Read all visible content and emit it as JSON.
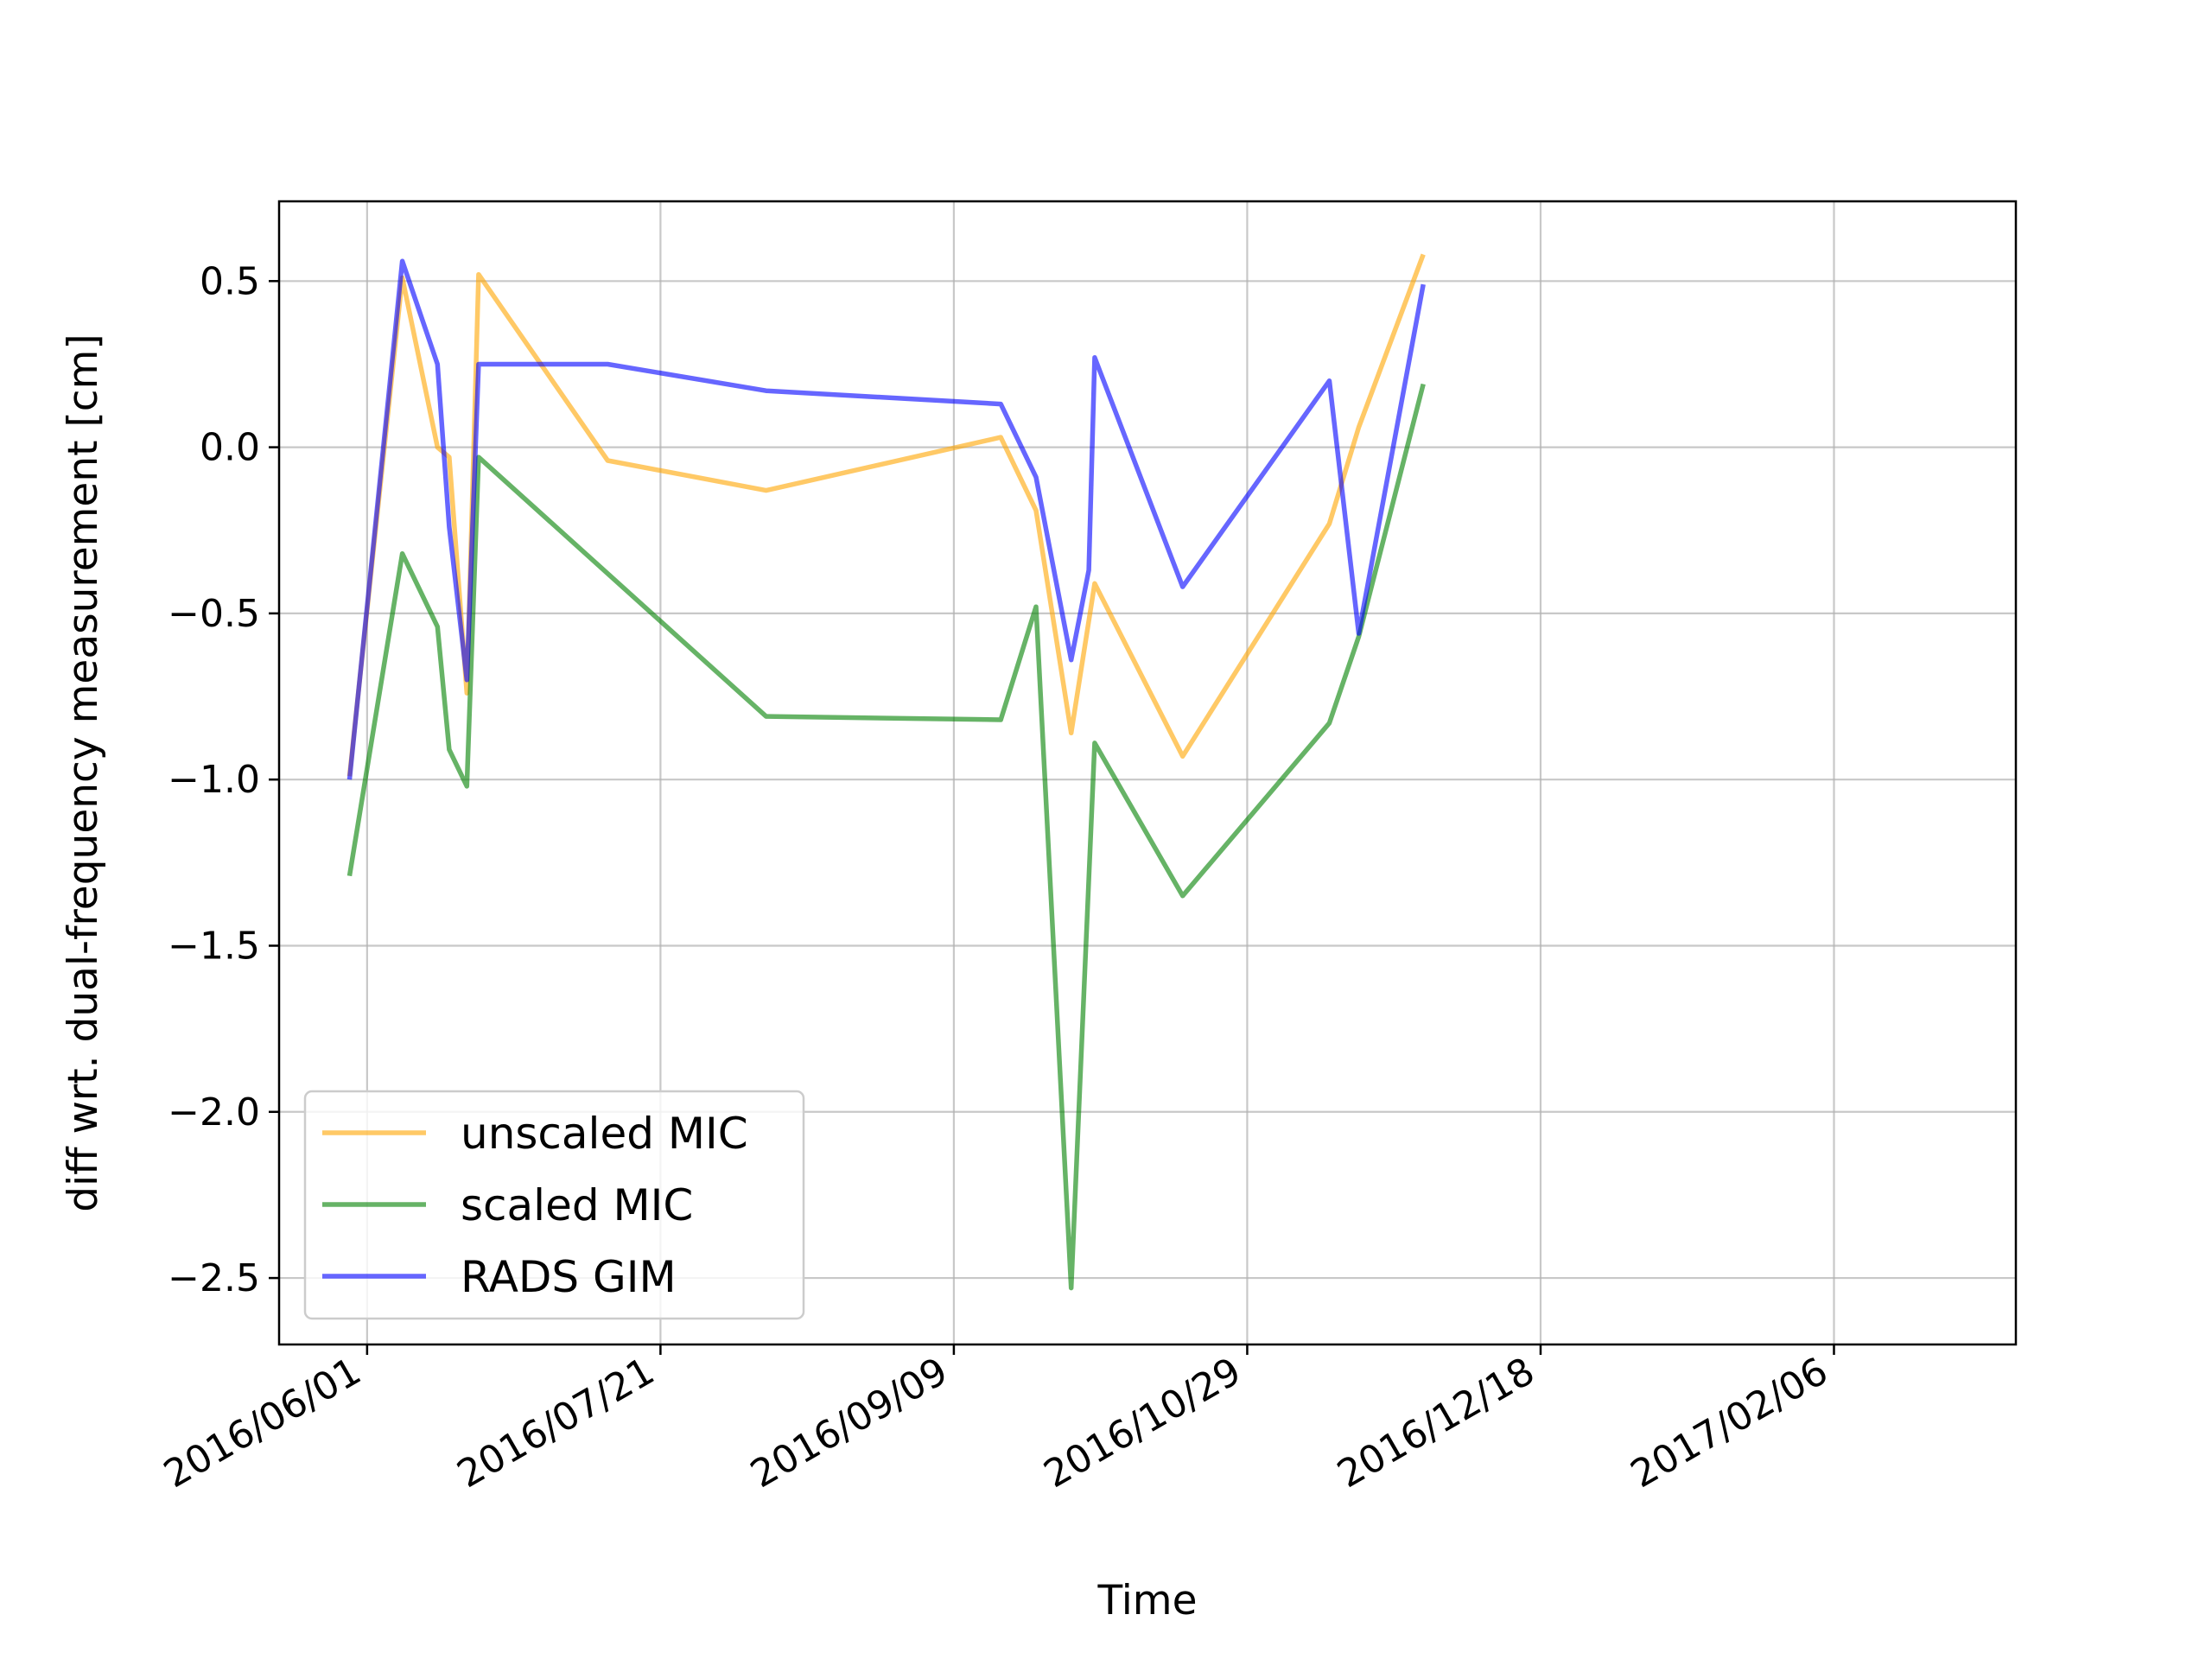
{
  "chart_data": {
    "type": "line",
    "title": "",
    "xlabel": "Time",
    "ylabel": "diff wrt. dual-frequency measurement [cm]",
    "x_axis": "date",
    "xlim": [
      "2016-05-17",
      "2017-03-09"
    ],
    "ylim": [
      -2.7,
      0.74
    ],
    "xticks": [
      "2016-06-01",
      "2016-07-21",
      "2016-09-09",
      "2016-10-29",
      "2016-12-18",
      "2017-02-06"
    ],
    "xtick_labels": [
      "2016/06/01",
      "2016/07/21",
      "2016/09/09",
      "2016/10/29",
      "2016/12/18",
      "2017/02/06"
    ],
    "yticks": [
      0.5,
      0.0,
      -0.5,
      -1.0,
      -1.5,
      -2.0,
      -2.5
    ],
    "ytick_labels": [
      "0.5",
      "0.0",
      "−0.5",
      "−1.0",
      "−1.5",
      "−2.0",
      "−2.5"
    ],
    "grid": true,
    "legend_position": "bottom-left",
    "series": [
      {
        "name": "unscaled MIC",
        "color": "#ffa500",
        "x": [
          "2016-05-29",
          "2016-06-07",
          "2016-06-13",
          "2016-06-15",
          "2016-06-18",
          "2016-06-20",
          "2016-07-12",
          "2016-08-08",
          "2016-09-17",
          "2016-09-23",
          "2016-09-29",
          "2016-10-03",
          "2016-10-18",
          "2016-11-12",
          "2016-11-17",
          "2016-11-28"
        ],
        "y": [
          -0.99,
          0.51,
          0.0,
          -0.03,
          -0.74,
          0.52,
          -0.04,
          -0.13,
          0.03,
          -0.19,
          -0.86,
          -0.41,
          -0.93,
          -0.23,
          0.06,
          0.58
        ]
      },
      {
        "name": "scaled MIC",
        "color": "#008000",
        "x": [
          "2016-05-29",
          "2016-06-07",
          "2016-06-13",
          "2016-06-15",
          "2016-06-18",
          "2016-06-20",
          "2016-08-08",
          "2016-09-17",
          "2016-09-23",
          "2016-09-29",
          "2016-10-03",
          "2016-10-18",
          "2016-11-12",
          "2016-11-17",
          "2016-11-28"
        ],
        "y": [
          -1.29,
          -0.32,
          -0.54,
          -0.91,
          -1.02,
          -0.03,
          -0.81,
          -0.82,
          -0.48,
          -2.53,
          -0.89,
          -1.35,
          -0.83,
          -0.57,
          0.19
        ]
      },
      {
        "name": "RADS GIM",
        "color": "#0000ff",
        "x": [
          "2016-05-29",
          "2016-06-07",
          "2016-06-13",
          "2016-06-15",
          "2016-06-18",
          "2016-06-20",
          "2016-07-12",
          "2016-08-08",
          "2016-09-17",
          "2016-09-23",
          "2016-09-29",
          "2016-10-02",
          "2016-10-03",
          "2016-10-18",
          "2016-11-12",
          "2016-11-17",
          "2016-11-28"
        ],
        "y": [
          -1.0,
          0.56,
          0.25,
          -0.24,
          -0.7,
          0.25,
          0.25,
          0.17,
          0.13,
          -0.09,
          -0.64,
          -0.37,
          0.27,
          -0.42,
          0.2,
          -0.56,
          0.49
        ]
      }
    ]
  }
}
